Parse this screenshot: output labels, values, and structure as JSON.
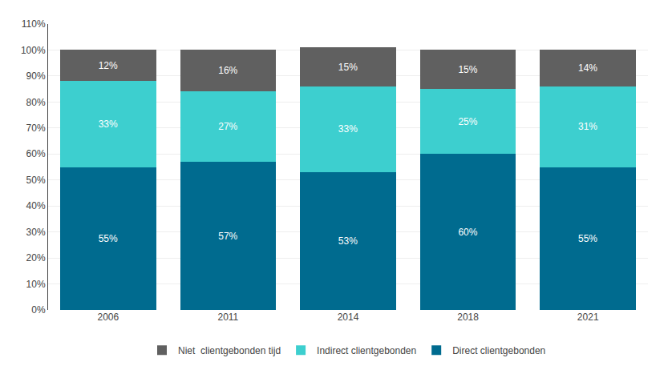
{
  "chart_data": {
    "type": "bar",
    "stacked": true,
    "categories": [
      "2006",
      "2011",
      "2014",
      "2018",
      "2021"
    ],
    "series": [
      {
        "name": "Direct clientgebonden",
        "color": "#006b8f",
        "values": [
          55,
          57,
          53,
          60,
          55
        ],
        "value_labels": [
          "55%",
          "57%",
          "53%",
          "60%",
          "55%"
        ]
      },
      {
        "name": "Indirect clientgebonden",
        "color": "#3dcfcf",
        "values": [
          33,
          27,
          33,
          25,
          31
        ],
        "value_labels": [
          "33%",
          "27%",
          "33%",
          "25%",
          "31%"
        ]
      },
      {
        "name": "Niet  clientgebonden tijd",
        "color": "#606060",
        "values": [
          12,
          16,
          15,
          15,
          14
        ],
        "value_labels": [
          "12%",
          "16%",
          "15%",
          "15%",
          "14%"
        ]
      }
    ],
    "ylim": [
      0,
      110
    ],
    "yticks": [
      {
        "value": 0,
        "label": "0%"
      },
      {
        "value": 10,
        "label": "10%"
      },
      {
        "value": 20,
        "label": "20%"
      },
      {
        "value": 30,
        "label": "30%"
      },
      {
        "value": 40,
        "label": "40%"
      },
      {
        "value": 50,
        "label": "50%"
      },
      {
        "value": 60,
        "label": "60%"
      },
      {
        "value": 70,
        "label": "70%"
      },
      {
        "value": 80,
        "label": "80%"
      },
      {
        "value": 90,
        "label": "90%"
      },
      {
        "value": 100,
        "label": "100%"
      },
      {
        "value": 110,
        "label": "110%"
      }
    ],
    "grid": true,
    "data_labels": true,
    "legend": "bottom"
  }
}
